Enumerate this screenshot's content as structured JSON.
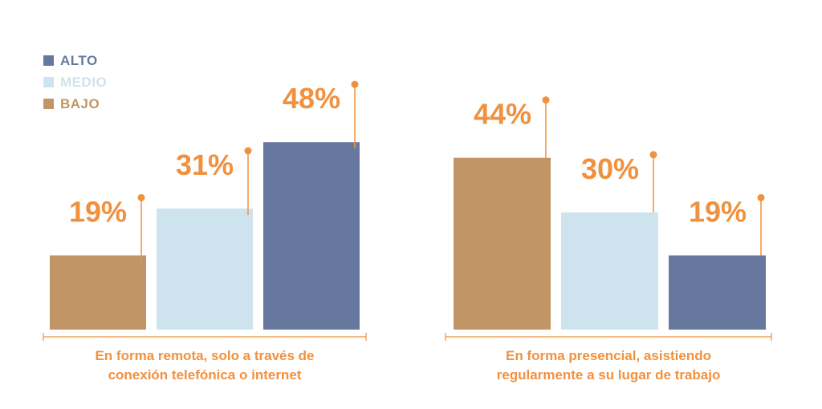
{
  "colors": {
    "alto": "#67789f",
    "medio": "#cde3ee",
    "bajo": "#c29567",
    "accent": "#f0913f"
  },
  "legend": [
    {
      "label": "ALTO",
      "color": "#67789f",
      "text_color": "#67789f"
    },
    {
      "label": "MEDIO",
      "color": "#cde3ee",
      "text_color": "#cde3ee"
    },
    {
      "label": "BAJO",
      "color": "#c29567",
      "text_color": "#c29567"
    }
  ],
  "chart_data": [
    {
      "type": "bar",
      "categories": [
        "BAJO",
        "MEDIO",
        "ALTO"
      ],
      "values": [
        19,
        31,
        48
      ],
      "data_labels": [
        "19%",
        "31%",
        "48%"
      ],
      "colors": [
        "#c29567",
        "#cde3ee",
        "#67789f"
      ],
      "caption_lines": [
        "En forma remota, solo a través de",
        "conexión telefónica o internet"
      ],
      "ylim": [
        0,
        50
      ]
    },
    {
      "type": "bar",
      "categories": [
        "BAJO",
        "MEDIO",
        "ALTO"
      ],
      "values": [
        44,
        30,
        19
      ],
      "data_labels": [
        "44%",
        "30%",
        "19%"
      ],
      "colors": [
        "#c29567",
        "#cde3ee",
        "#67789f"
      ],
      "caption_lines": [
        "En forma presencial, asistiendo",
        "regularmente a su lugar de trabajo"
      ],
      "ylim": [
        0,
        50
      ]
    }
  ]
}
